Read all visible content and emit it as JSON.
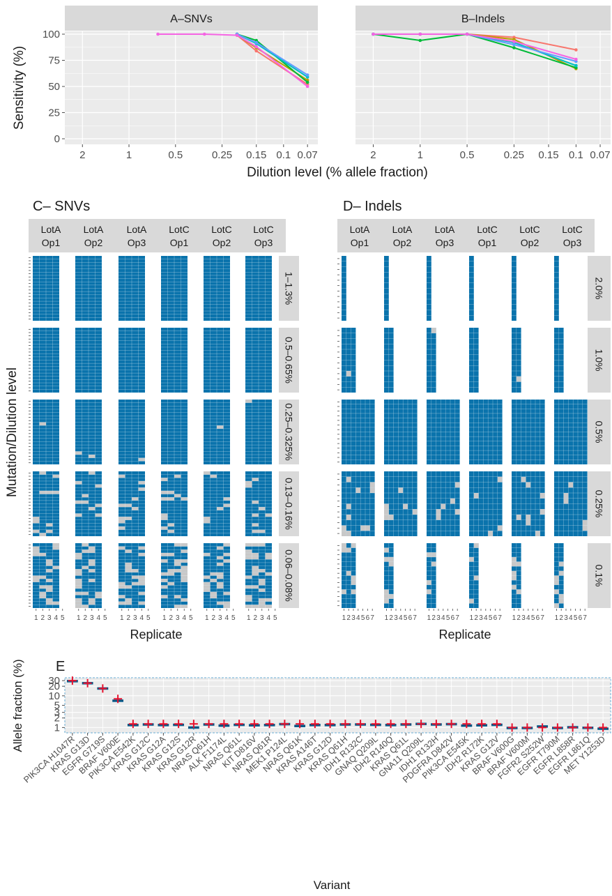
{
  "panelA": {
    "strip": "A–SNVs",
    "x_ticks": [
      "2",
      "1",
      "0.5",
      "0.25",
      "0.15",
      "0.1",
      "0.07"
    ],
    "x_tick_vals": [
      2,
      1,
      0.5,
      0.25,
      0.15,
      0.1,
      0.07
    ],
    "series": [
      {
        "color": "#f8766d",
        "x": [
          0.2,
          0.15,
          0.07
        ],
        "y": [
          99,
          84,
          52
        ]
      },
      {
        "color": "#b79f00",
        "x": [
          0.2,
          0.15,
          0.07
        ],
        "y": [
          99,
          87,
          56
        ]
      },
      {
        "color": "#00ba38",
        "x": [
          0.2,
          0.15,
          0.07
        ],
        "y": [
          100,
          94,
          54
        ]
      },
      {
        "color": "#00bfc4",
        "x": [
          0.2,
          0.15,
          0.07
        ],
        "y": [
          100,
          91,
          59
        ]
      },
      {
        "color": "#619cff",
        "x": [
          0.2,
          0.15,
          0.07
        ],
        "y": [
          100,
          92,
          61
        ]
      },
      {
        "color": "#f564e3",
        "x": [
          0.65,
          0.325,
          0.2,
          0.15,
          0.07
        ],
        "y": [
          100,
          100,
          99,
          88,
          50
        ]
      }
    ]
  },
  "panelB": {
    "strip": "B–Indels",
    "x_ticks": [
      "2",
      "1",
      "0.5",
      "0.25",
      "0.15",
      "0.1",
      "0.07"
    ],
    "x_tick_vals": [
      2,
      1,
      0.5,
      0.25,
      0.15,
      0.1,
      0.07
    ],
    "series": [
      {
        "color": "#f8766d",
        "x": [
          2,
          1,
          0.5,
          0.25,
          0.1
        ],
        "y": [
          100,
          100,
          100,
          97,
          85
        ]
      },
      {
        "color": "#b79f00",
        "x": [
          2,
          1,
          0.5,
          0.25,
          0.1
        ],
        "y": [
          100,
          100,
          100,
          95,
          67
        ]
      },
      {
        "color": "#00ba38",
        "x": [
          2,
          1,
          0.5,
          0.25,
          0.1
        ],
        "y": [
          100,
          94,
          100,
          87,
          68
        ]
      },
      {
        "color": "#00bfc4",
        "x": [
          2,
          1,
          0.5,
          0.25,
          0.1
        ],
        "y": [
          100,
          100,
          100,
          92,
          70
        ]
      },
      {
        "color": "#619cff",
        "x": [
          2,
          1,
          0.5,
          0.25,
          0.1
        ],
        "y": [
          100,
          100,
          100,
          90,
          74
        ]
      },
      {
        "color": "#f564e3",
        "x": [
          2,
          1,
          0.5,
          0.25,
          0.1
        ],
        "y": [
          100,
          100,
          100,
          93,
          76
        ]
      }
    ]
  },
  "panelAB": {
    "y_label": "Sensitivity (%)",
    "x_label": "Dilution level (% allele fraction)",
    "y_ticks": [
      "0",
      "25",
      "50",
      "75",
      "100"
    ],
    "y_tick_vals": [
      0,
      25,
      50,
      75,
      100
    ]
  },
  "panelC": {
    "title": "C– SNVs",
    "columns": [
      "LotA\nOp1",
      "LotA\nOp2",
      "LotA\nOp3",
      "LotC\nOp1",
      "LotC\nOp2",
      "LotC\nOp3"
    ],
    "rows": [
      "1–1.3%",
      "0.5–0.65%",
      "0.25–0.325%",
      "0.13–0.16%",
      "0.06–0.08%"
    ],
    "x_ticks": [
      "1",
      "2",
      "3",
      "4",
      "5"
    ],
    "x_label": "Replicate"
  },
  "panelD": {
    "title": "D– Indels",
    "columns": [
      "LotA\nOp1",
      "LotA\nOp2",
      "LotA\nOp3",
      "LotC\nOp1",
      "LotC\nOp2",
      "LotC\nOp3"
    ],
    "rows": [
      "2.0%",
      "1.0%",
      "0.5%",
      "0.25%",
      "0.1%"
    ],
    "x_ticks": [
      "1",
      "2",
      "3",
      "4",
      "5",
      "6",
      "7"
    ],
    "x_label": "Replicate"
  },
  "panelCD": {
    "y_label": "Mutation/Dilution level"
  },
  "panelE": {
    "title": "E",
    "y_label": "Allele fraction (%)",
    "x_label": "Variant",
    "y_ticks": [
      "1",
      "2",
      "3",
      "5",
      "10",
      "20",
      "30"
    ],
    "y_tick_vals": [
      1,
      2,
      3,
      5,
      10,
      20,
      30
    ],
    "variants": [
      "PIK3CA H1047R",
      "KRAS G13D",
      "EGFR G719S",
      "BRAF V600E",
      "PIK3CA E542K",
      "KRAS G12C",
      "KRAS G12A",
      "KRAS G12S",
      "KRAS G12R",
      "NRAS Q61H",
      "ALK F1174L",
      "NRAS Q61L",
      "KIT D816V",
      "NRAS Q61R",
      "MEK1 P124L",
      "NRAS Q61K",
      "KRAS A146T",
      "KRAS G12D",
      "KRAS Q61H",
      "IDH1 R132C",
      "GNAQ Q209L",
      "IDH2 R140Q",
      "KRAS Q61L",
      "GNA11 Q209L",
      "IDH1 R132H",
      "PDGFRA D842V",
      "PIK3CA E545K",
      "IDH2 R172K",
      "KRAS G12V",
      "BRAF V600G",
      "BRAF V600M",
      "FGFR2 S252W",
      "EGFR T790M",
      "EGFR L858R",
      "EGFR L861Q",
      "MET Y1253D"
    ],
    "medians": [
      29,
      25,
      17,
      7,
      1.2,
      1.25,
      1.2,
      1.22,
      1.0,
      1.25,
      1.15,
      1.22,
      1.18,
      1.2,
      1.28,
      1.12,
      1.2,
      1.2,
      1.25,
      1.25,
      1.22,
      1.2,
      1.25,
      1.3,
      1.25,
      1.28,
      1.15,
      1.18,
      1.22,
      0.97,
      0.97,
      1.08,
      0.97,
      1.02,
      0.98,
      0.92
    ],
    "expected": [
      30,
      25,
      17,
      8,
      1.3,
      1.3,
      1.3,
      1.3,
      1.3,
      1.3,
      1.3,
      1.3,
      1.3,
      1.3,
      1.3,
      1.3,
      1.3,
      1.3,
      1.3,
      1.3,
      1.3,
      1.3,
      1.3,
      1.3,
      1.3,
      1.3,
      1.3,
      1.3,
      1.3,
      1.0,
      1.0,
      1.0,
      1.0,
      1.0,
      1.0,
      1.0
    ]
  }
}
